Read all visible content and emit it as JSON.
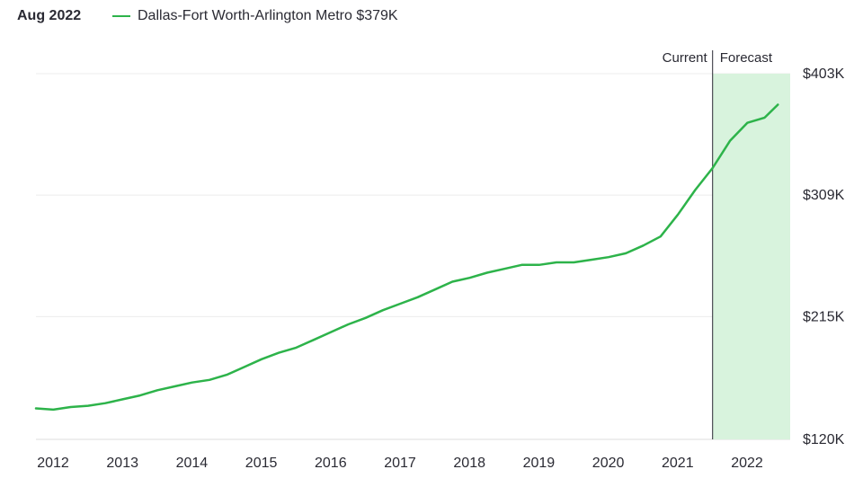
{
  "legend": {
    "date": "Aug 2022",
    "series_label": "Dallas-Fort Worth-Arlington Metro $379K"
  },
  "colors": {
    "line": "#2db34a",
    "forecast_fill": "#d8f3dd",
    "grid": "#ececec",
    "divider": "#2a2a33",
    "text": "#2a2a33"
  },
  "chart_data": {
    "type": "line",
    "title": "",
    "xlabel": "",
    "ylabel": "",
    "x_ticks": [
      "2012",
      "2013",
      "2014",
      "2015",
      "2016",
      "2017",
      "2018",
      "2019",
      "2020",
      "2021",
      "2022"
    ],
    "y_ticks": [
      120,
      215,
      309,
      403
    ],
    "y_tick_labels": [
      "$120K",
      "$215K",
      "$309K",
      "$403K"
    ],
    "ylim": [
      120,
      403
    ],
    "xlim": [
      2012.0,
      2022.75
    ],
    "grid": true,
    "current_label": "Current",
    "forecast_label": "Forecast",
    "current_x": 2021.75,
    "forecast_end_x": 2022.69,
    "series": [
      {
        "name": "Dallas-Fort Worth-Arlington Metro",
        "x": [
          2012.0,
          2012.25,
          2012.5,
          2012.75,
          2013.0,
          2013.25,
          2013.5,
          2013.75,
          2014.0,
          2014.25,
          2014.5,
          2014.75,
          2015.0,
          2015.25,
          2015.5,
          2015.75,
          2016.0,
          2016.25,
          2016.5,
          2016.75,
          2017.0,
          2017.25,
          2017.5,
          2017.75,
          2018.0,
          2018.25,
          2018.5,
          2018.75,
          2019.0,
          2019.25,
          2019.5,
          2019.75,
          2020.0,
          2020.25,
          2020.5,
          2020.75,
          2021.0,
          2021.25,
          2021.5,
          2021.75,
          2022.0,
          2022.25,
          2022.5,
          2022.69
        ],
        "values": [
          144,
          143,
          145,
          146,
          148,
          151,
          154,
          158,
          161,
          164,
          166,
          170,
          176,
          182,
          187,
          191,
          197,
          203,
          209,
          214,
          220,
          225,
          230,
          236,
          242,
          245,
          249,
          252,
          255,
          255,
          257,
          257,
          259,
          261,
          264,
          270,
          277,
          294,
          313,
          330,
          351,
          365,
          369,
          379
        ]
      }
    ]
  }
}
